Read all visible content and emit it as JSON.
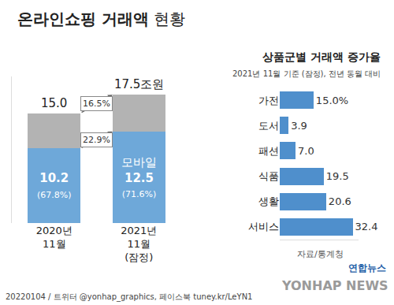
{
  "chart_data": [
    {
      "type": "bar",
      "title": "온라인쇼핑 거래액 현황",
      "categories": [
        "2020년 11월",
        "2021년 11월 (잠정)"
      ],
      "stacked": true,
      "series": [
        {
          "name": "모바일",
          "color": "#6ea8d9",
          "values": [
            10.2,
            12.5
          ],
          "data_labels": true,
          "share_labels": [
            "(67.8%)",
            "(71.6%)"
          ]
        },
        {
          "color": "#b3b3b3",
          "values": [
            4.8,
            5.0
          ]
        }
      ],
      "totals": [
        15.0,
        17.5
      ],
      "total_labels": [
        "15.0",
        "17.5조원"
      ],
      "growth_labels": [
        "16.5%",
        "22.9%"
      ],
      "ylim": [
        0,
        20
      ],
      "tick_labels": "x",
      "annotations": [
        "20220104 / 트위터 @yonhap_graphics, 페이스북 tuney.kr/LeYN1"
      ]
    },
    {
      "type": "bar",
      "orientation": "horizontal",
      "title": "상품군별 거래액 증가율",
      "subtitle": "2021년 11월 기준 (잠정), 전년 동월 대비",
      "categories": [
        "가전",
        "도서",
        "패션",
        "식품",
        "생활",
        "서비스"
      ],
      "values": [
        15.0,
        3.9,
        7.0,
        19.5,
        20.6,
        32.4
      ],
      "value_labels": [
        "15.0%",
        "3.9",
        "7.0",
        "19.5",
        "20.6",
        "32.4"
      ],
      "color": "#4f8fcc",
      "xlim": [
        0,
        35
      ],
      "tick_labels": "y",
      "data_labels": true,
      "annotations": [
        "자료/통계청",
        "연합뉴스",
        "YONHAP NEWS"
      ]
    }
  ]
}
